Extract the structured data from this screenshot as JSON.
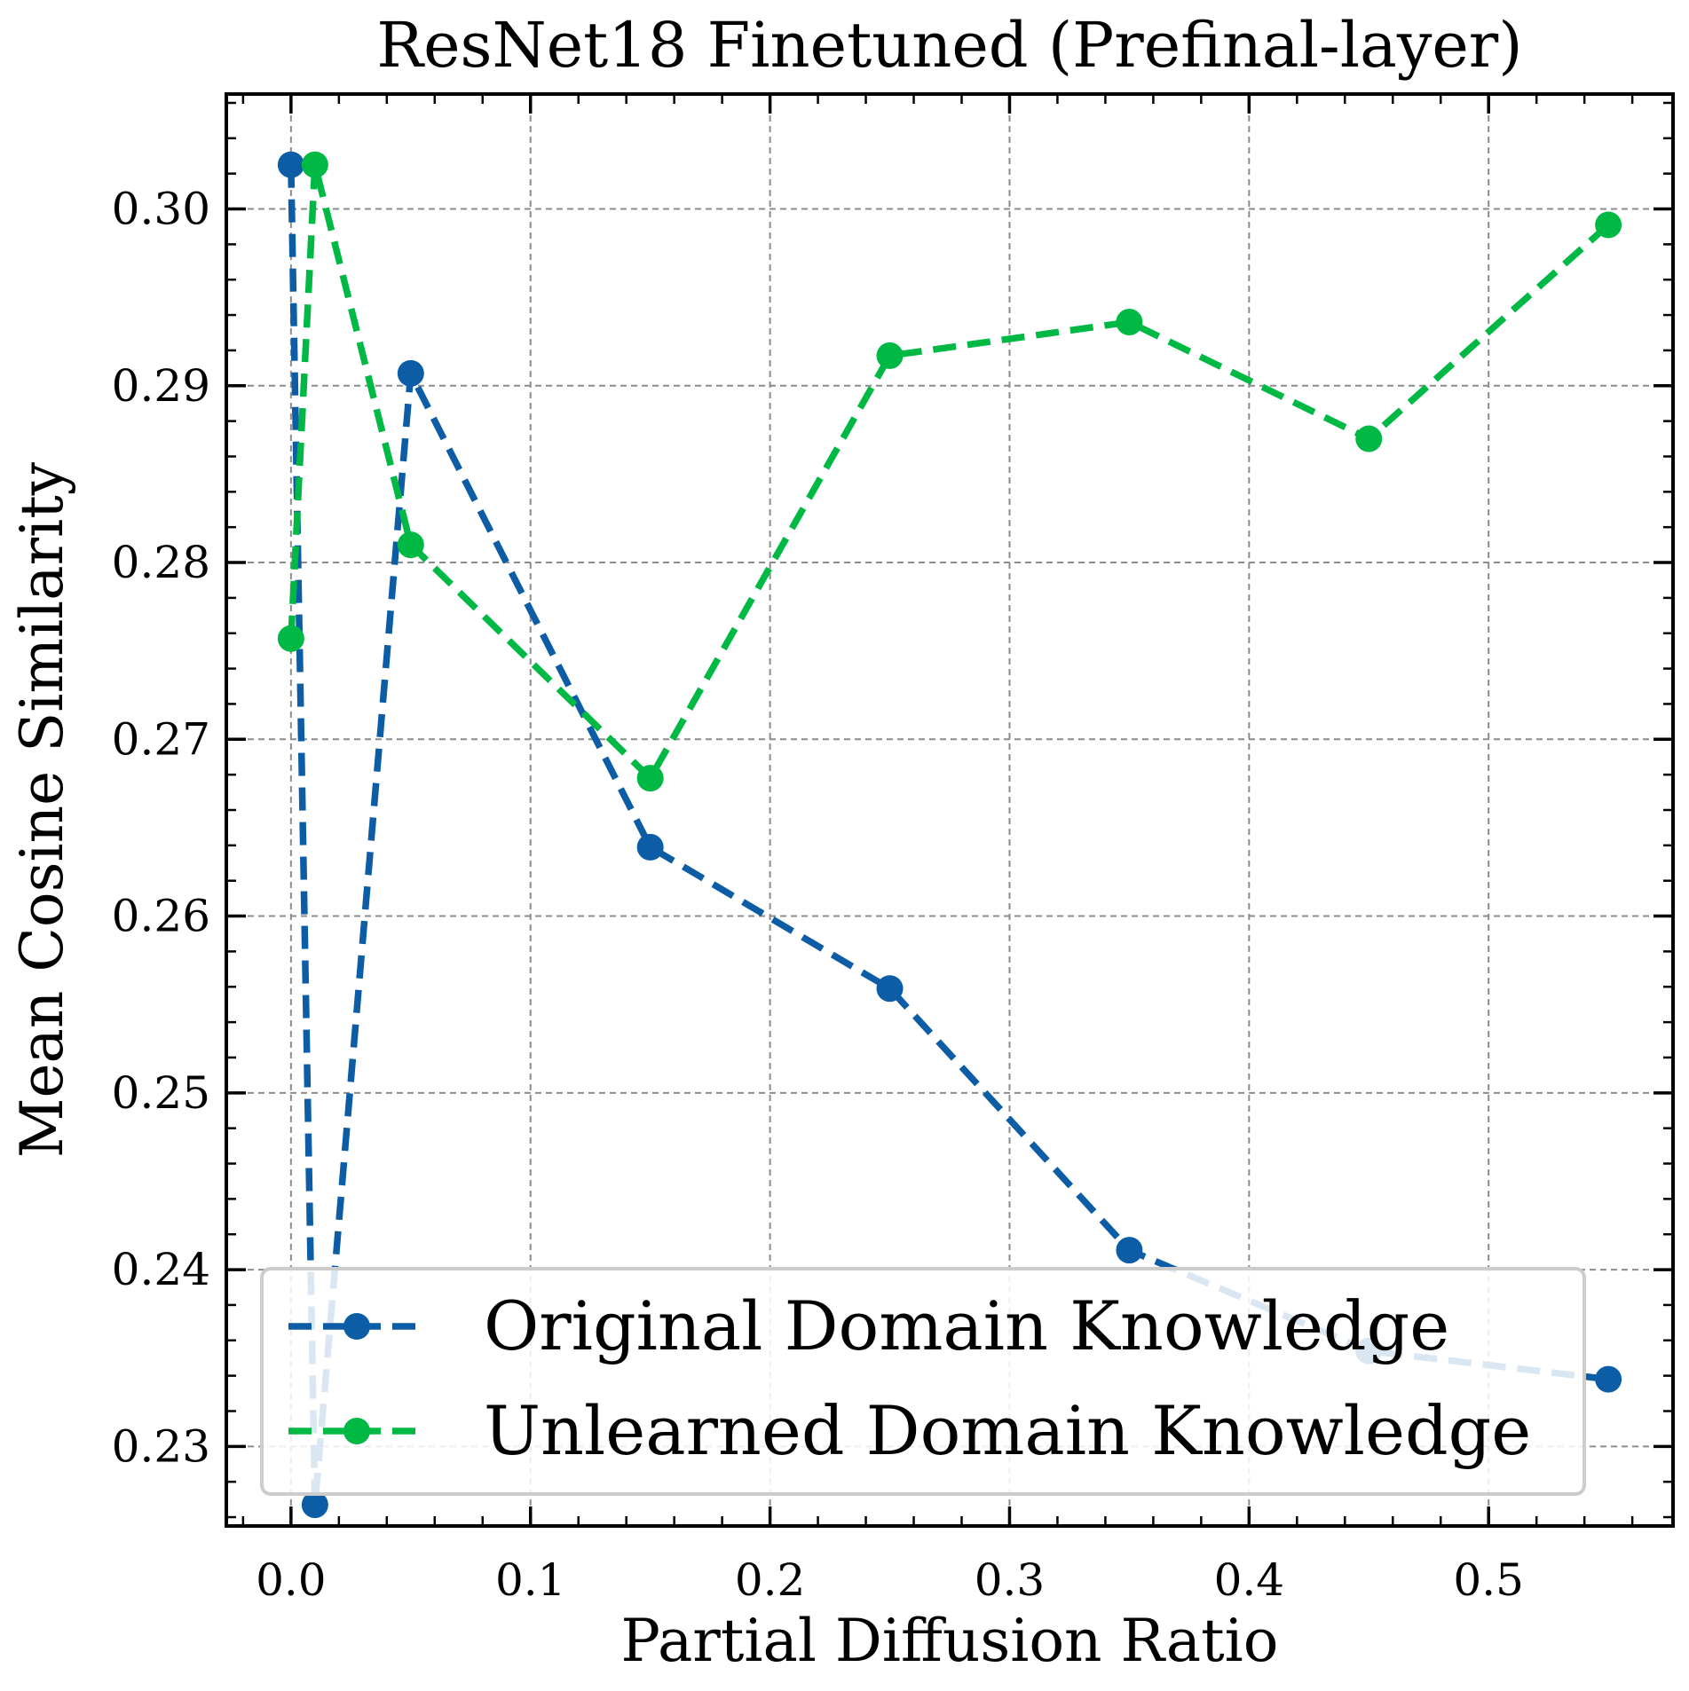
{
  "chart_data": {
    "type": "line",
    "title": "ResNet18 Finetuned (Prefinal-layer)",
    "xlabel": "Partial Diffusion Ratio",
    "ylabel": "Mean Cosine Similarity",
    "xlim": [
      -0.027,
      0.577
    ],
    "ylim": [
      0.2255,
      0.3065
    ],
    "xticks": [
      0.0,
      0.1,
      0.2,
      0.3,
      0.4,
      0.5
    ],
    "xtick_labels": [
      "0.0",
      "0.1",
      "0.2",
      "0.3",
      "0.4",
      "0.5"
    ],
    "yticks": [
      0.23,
      0.24,
      0.25,
      0.26,
      0.27,
      0.28,
      0.29,
      0.3
    ],
    "ytick_labels": [
      "0.23",
      "0.24",
      "0.25",
      "0.26",
      "0.27",
      "0.28",
      "0.29",
      "0.30"
    ],
    "grid": true,
    "line_style": "dashed",
    "legend_position": "lower-right",
    "series": [
      {
        "name": "Original Domain Knowledge",
        "color": "#0C5DA5",
        "x": [
          0.0,
          0.01,
          0.05,
          0.15,
          0.25,
          0.35,
          0.45,
          0.55
        ],
        "y": [
          0.3025,
          0.2267,
          0.2907,
          0.2639,
          0.2559,
          0.2411,
          0.2354,
          0.2338
        ]
      },
      {
        "name": "Unlearned Domain Knowledge",
        "color": "#00B945",
        "x": [
          0.0,
          0.01,
          0.05,
          0.15,
          0.25,
          0.35,
          0.45,
          0.55
        ],
        "y": [
          0.2757,
          0.3025,
          0.281,
          0.2678,
          0.2917,
          0.2936,
          0.287,
          0.2991
        ]
      }
    ]
  }
}
